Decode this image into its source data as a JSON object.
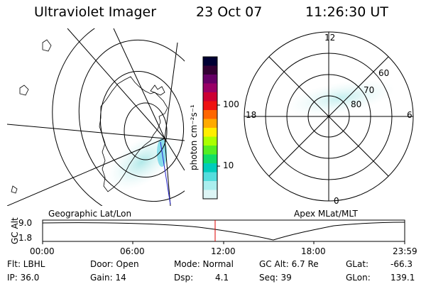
{
  "header": {
    "instrument": "Ultraviolet Imager",
    "date": "23 Oct 07",
    "time": "11:26:30 UT"
  },
  "colorbar": {
    "unit_label": "photon cm⁻²s⁻¹",
    "ticks": [
      "100",
      "10"
    ],
    "colors": [
      "#000033",
      "#330033",
      "#660066",
      "#990066",
      "#cc0033",
      "#ee1111",
      "#ff6600",
      "#ffaa00",
      "#ffee00",
      "#aaff00",
      "#55ee22",
      "#11dd66",
      "#00ccbb",
      "#55dddd",
      "#aaeeee",
      "#ddf5f5"
    ]
  },
  "geo_panel": {
    "label": "Geographic Lat/Lon"
  },
  "polar_panel": {
    "label": "Apex MLat/MLT",
    "mlt_labels": {
      "top": "12",
      "right": "6",
      "bottom": "0",
      "left": "18"
    },
    "lat_labels": [
      "60",
      "70",
      "80"
    ]
  },
  "altitude_plot": {
    "ylabel": "GC Alt",
    "yticks": [
      "9.0",
      "1.8"
    ],
    "xticks": [
      "00:00",
      "06:00",
      "12:00",
      "18:00",
      "23:59"
    ],
    "current_time_color": "#dd0000"
  },
  "info": {
    "flt": "Flt: LBHL",
    "ip": "IP: 36.0",
    "door": "Door: Open",
    "gain": "Gain: 14",
    "mode": "Mode: Normal",
    "dsp_label": "Dsp:",
    "dsp_value": "4.1",
    "gc_alt": "GC Alt: 6.7 Re",
    "seq": "Seq: 39",
    "glat": "GLat:",
    "glat_value": "-66.3",
    "glon": "GLon:",
    "glon_value": "139.1"
  }
}
